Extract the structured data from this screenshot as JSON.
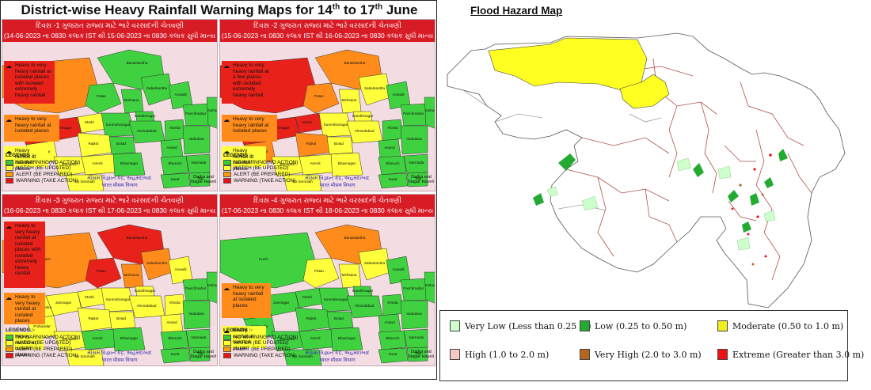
{
  "left": {
    "title_main": "District-wise Heavy Rainfall Warning Maps for 14",
    "title_sup1": "th",
    "title_mid": " to 17",
    "title_sup2": "th",
    "title_end": " June"
  },
  "panels": [
    {
      "head1": "દિવસ -1 ગુજરાત રાજ્ય માટે ભારે વરસાદની ચેતવણી",
      "head2": "(14-06-2023 ના 0830 કલાક IST થી 15-06-2023 ના 0830 કલાક સુધી માન્ય",
      "callouts": [
        "Heavy to very heavy rainfall at isolated places with isolated extremely heavy rainfall",
        "Heavy to very heavy rainfall at isolated places",
        "Heavy rainfall at isolated places"
      ]
    },
    {
      "head1": "દિવસ -2 ગુજરાત રાજ્ય માટે ભારે વરસાદની ચેતવણી",
      "head2": "(15-06-2023 ના 0830 કલાક IST થી 16-06-2023 ના 0830 કલાક સુધી માન્ય",
      "callouts": [
        "Heavy to very heavy rainfall at a few places with isolated extremely heavy rainfall",
        "Heavy to very heavy rainfall at isolated places",
        "Heavy rainfall at isolated places"
      ]
    },
    {
      "head1": "દિવસ -3 ગુજરાત રાજ્ય માટે ભારે વરસાદની ચેતવણી",
      "head2": "(16-06-2023 ના 0830 કલાક IST થી 17-06-2023 ના 0830 કલાક સુધી માન્ય",
      "callouts": [
        "Heavy to very heavy rainfall at isolated places with isolated extremely heavy rainfall",
        "Heavy to very heavy rainfall at isolated places",
        "Heavy rainfall at isolated places"
      ]
    },
    {
      "head1": "દિવસ -4 ગુજરાત રાજ્ય માટે ભારે વરસાદની ચેતવણી",
      "head2": "(17-06-2023 ના 0830 કલાક IST થી 18-06-2023 ના 0830 કલાક સુધી માન્ય",
      "callouts": [
        "Heavy to very heavy rainfall at isolated places",
        "Heavy rainfall at isolated places"
      ]
    }
  ],
  "warning_legend": {
    "title": "LEGENDS :-",
    "items": [
      {
        "label": "NO WARNING(NO ACTION)",
        "color": "#33cc33"
      },
      {
        "label": "WATCH (BE UPDATED)",
        "color": "#ffff33"
      },
      {
        "label": "ALERT (BE PREPARED)",
        "color": "#ff9900"
      },
      {
        "label": "WARNING (TAKE ACTION)",
        "color": "#ee1111"
      }
    ],
    "imd_line1": "મૌસમ વિજ્ઞાન કેંદ્ર, અહમદાબાદ",
    "imd_line2": "भारत मौसम विभाग",
    "dadra": "Dadra and Nagar Haveli"
  },
  "district_labels": [
    "Banaskantha",
    "Kutch",
    "Patan",
    "Mehsana",
    "Sabarkantha",
    "Aravalli",
    "Morbi",
    "Surendranagar",
    "Gandhinagar",
    "Ahmedabad",
    "Kheda",
    "Panchmahal",
    "Dahod",
    "Mahisagar",
    "Jamnagar",
    "Devbhoomi Dwarka",
    "Rajkot",
    "Botad",
    "Anand",
    "Vadodara",
    "Porbandar",
    "Junagadh",
    "Amreli",
    "Bhavnagar",
    "Bharuch",
    "Narmada",
    "Surat",
    "Tapi",
    "Gir Somnath",
    "Navsari",
    "Valsad",
    "Dangs",
    "Chhota Udaipur"
  ],
  "flood_map": {
    "title": "Flood Hazard Map",
    "legend": [
      {
        "label": "Very Low (Less than 0.25 m)",
        "color": "#ccffcc"
      },
      {
        "label": "Low (0.25 to 0.50 m)",
        "color": "#22aa33"
      },
      {
        "label": "Moderate (0.50 to 1.0 m)",
        "color": "#eeee22"
      },
      {
        "label": "High (1.0 to 2.0 m)",
        "color": "#f6c9c4"
      },
      {
        "label": "Very High (2.0 to 3.0 m)",
        "color": "#b5651d"
      },
      {
        "label": "Extreme (Greater than 3.0 m)",
        "color": "#ee1111"
      }
    ]
  },
  "colors": {
    "green": "#3fd13f",
    "yellow": "#ffff3b",
    "orange": "#ff8c1a",
    "red": "#e8211b",
    "panel_bg": "#f3dde3",
    "header_red": "#d81c26"
  }
}
